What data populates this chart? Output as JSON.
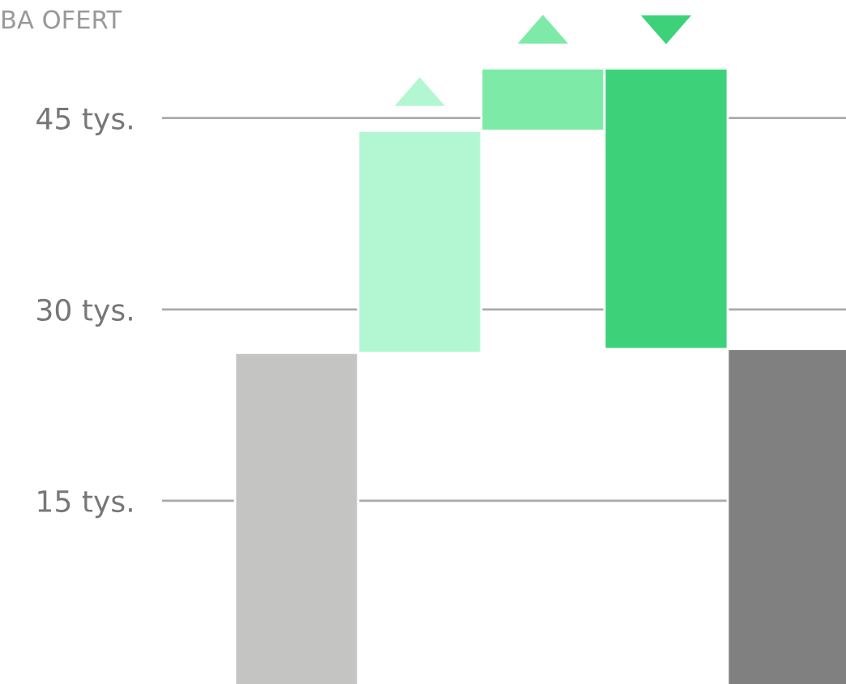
{
  "chart_data": {
    "type": "bar",
    "title": "BA OFERT",
    "categories": [
      null,
      null,
      null,
      null,
      null
    ],
    "values": [
      26.6,
      17.4,
      4.9,
      -22.0,
      26.9
    ],
    "base": [
      0,
      26.6,
      44.0,
      48.9,
      0
    ],
    "colors": [
      "#c4c4c2",
      "#b2f7d2",
      "#7deaa8",
      "#3dd27a",
      "#808080"
    ],
    "yticks": [
      {
        "value": 15,
        "label": "15 tys."
      },
      {
        "value": 30,
        "label": "30 tys."
      },
      {
        "value": 45,
        "label": "45 tys."
      }
    ],
    "ylim": [
      0,
      48.9
    ],
    "grid": "y"
  }
}
